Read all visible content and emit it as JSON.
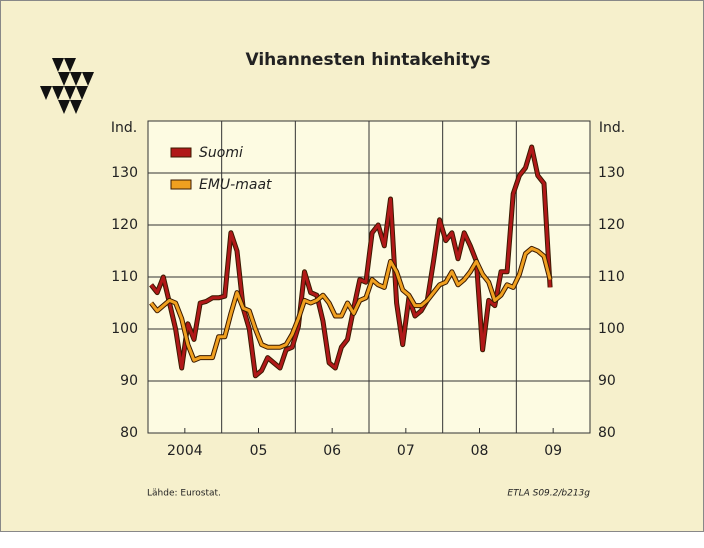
{
  "chart_data": {
    "type": "line",
    "title": "Vihannesten hintakehitys",
    "ylabel": "Ind.",
    "y2label": "Ind.",
    "source": "Lähde:  Eurostat.",
    "code": "ETLA S09.2/b213g",
    "x": [
      2004.042,
      2004.125,
      2004.208,
      2004.292,
      2004.375,
      2004.458,
      2004.542,
      2004.625,
      2004.708,
      2004.792,
      2004.875,
      2004.958,
      2005.042,
      2005.125,
      2005.208,
      2005.292,
      2005.375,
      2005.458,
      2005.542,
      2005.625,
      2005.708,
      2005.792,
      2005.875,
      2005.958,
      2006.042,
      2006.125,
      2006.208,
      2006.292,
      2006.375,
      2006.458,
      2006.542,
      2006.625,
      2006.708,
      2006.792,
      2006.875,
      2006.958,
      2007.042,
      2007.125,
      2007.208,
      2007.292,
      2007.375,
      2007.458,
      2007.542,
      2007.625,
      2007.708,
      2007.792,
      2007.875,
      2007.958,
      2008.042,
      2008.125,
      2008.208,
      2008.292,
      2008.375,
      2008.458,
      2008.542,
      2008.625,
      2008.708,
      2008.792,
      2008.875,
      2008.958,
      2009.042,
      2009.125,
      2009.208,
      2009.292,
      2009.375,
      2009.458
    ],
    "series": [
      {
        "name": "Suomi",
        "color": "#b01818",
        "values": [
          108.5,
          107,
          110,
          105,
          100,
          92.5,
          101,
          98,
          105,
          105.3,
          106,
          106,
          106.3,
          118.5,
          115,
          104,
          100,
          91,
          92,
          94.5,
          93.5,
          92.5,
          96,
          96.5,
          100.5,
          111,
          107,
          106.5,
          101.5,
          93.5,
          92.5,
          96.5,
          98,
          104,
          109.5,
          109,
          118.5,
          120,
          116,
          125,
          105,
          97,
          106,
          102.5,
          103.5,
          105.5,
          113,
          121,
          117,
          118.5,
          113.5,
          118.5,
          116,
          113,
          96,
          105.5,
          104.5,
          111,
          111,
          126,
          129.5,
          131,
          135,
          129.5,
          128,
          108
        ]
      },
      {
        "name": "EMU-maat",
        "color": "#f0a020",
        "values": [
          105,
          103.5,
          104.5,
          105.5,
          105,
          102,
          97,
          94,
          94.5,
          94.5,
          94.5,
          98.5,
          98.5,
          103,
          107,
          104,
          103.5,
          100,
          97,
          96.5,
          96.5,
          96.5,
          97,
          99,
          102,
          105.5,
          105,
          105.5,
          106.5,
          105,
          102.5,
          102.5,
          105,
          103,
          105.5,
          106,
          109.5,
          108.5,
          108,
          113,
          111,
          107.5,
          106.5,
          104.5,
          104.5,
          105.5,
          107,
          108.5,
          109,
          111,
          108.5,
          109.5,
          111,
          113,
          110.5,
          109,
          105.5,
          106.5,
          108.5,
          108,
          110.5,
          114.5,
          115.5,
          115,
          114,
          109.5
        ]
      }
    ],
    "xlim": [
      2004,
      2010
    ],
    "xticks": [
      {
        "value": 2004.5,
        "label": "2004"
      },
      {
        "value": 2005.5,
        "label": "05"
      },
      {
        "value": 2006.5,
        "label": "06"
      },
      {
        "value": 2007.5,
        "label": "07"
      },
      {
        "value": 2008.5,
        "label": "08"
      },
      {
        "value": 2009.5,
        "label": "09"
      }
    ],
    "xgrid": [
      2005,
      2006,
      2007,
      2008,
      2009
    ],
    "ylim": [
      80,
      140
    ],
    "yticks": [
      80,
      90,
      100,
      110,
      120,
      130
    ],
    "y2lim": [
      80,
      140
    ],
    "y2ticks": [
      80,
      90,
      100,
      110,
      120,
      130
    ],
    "grid": true
  }
}
